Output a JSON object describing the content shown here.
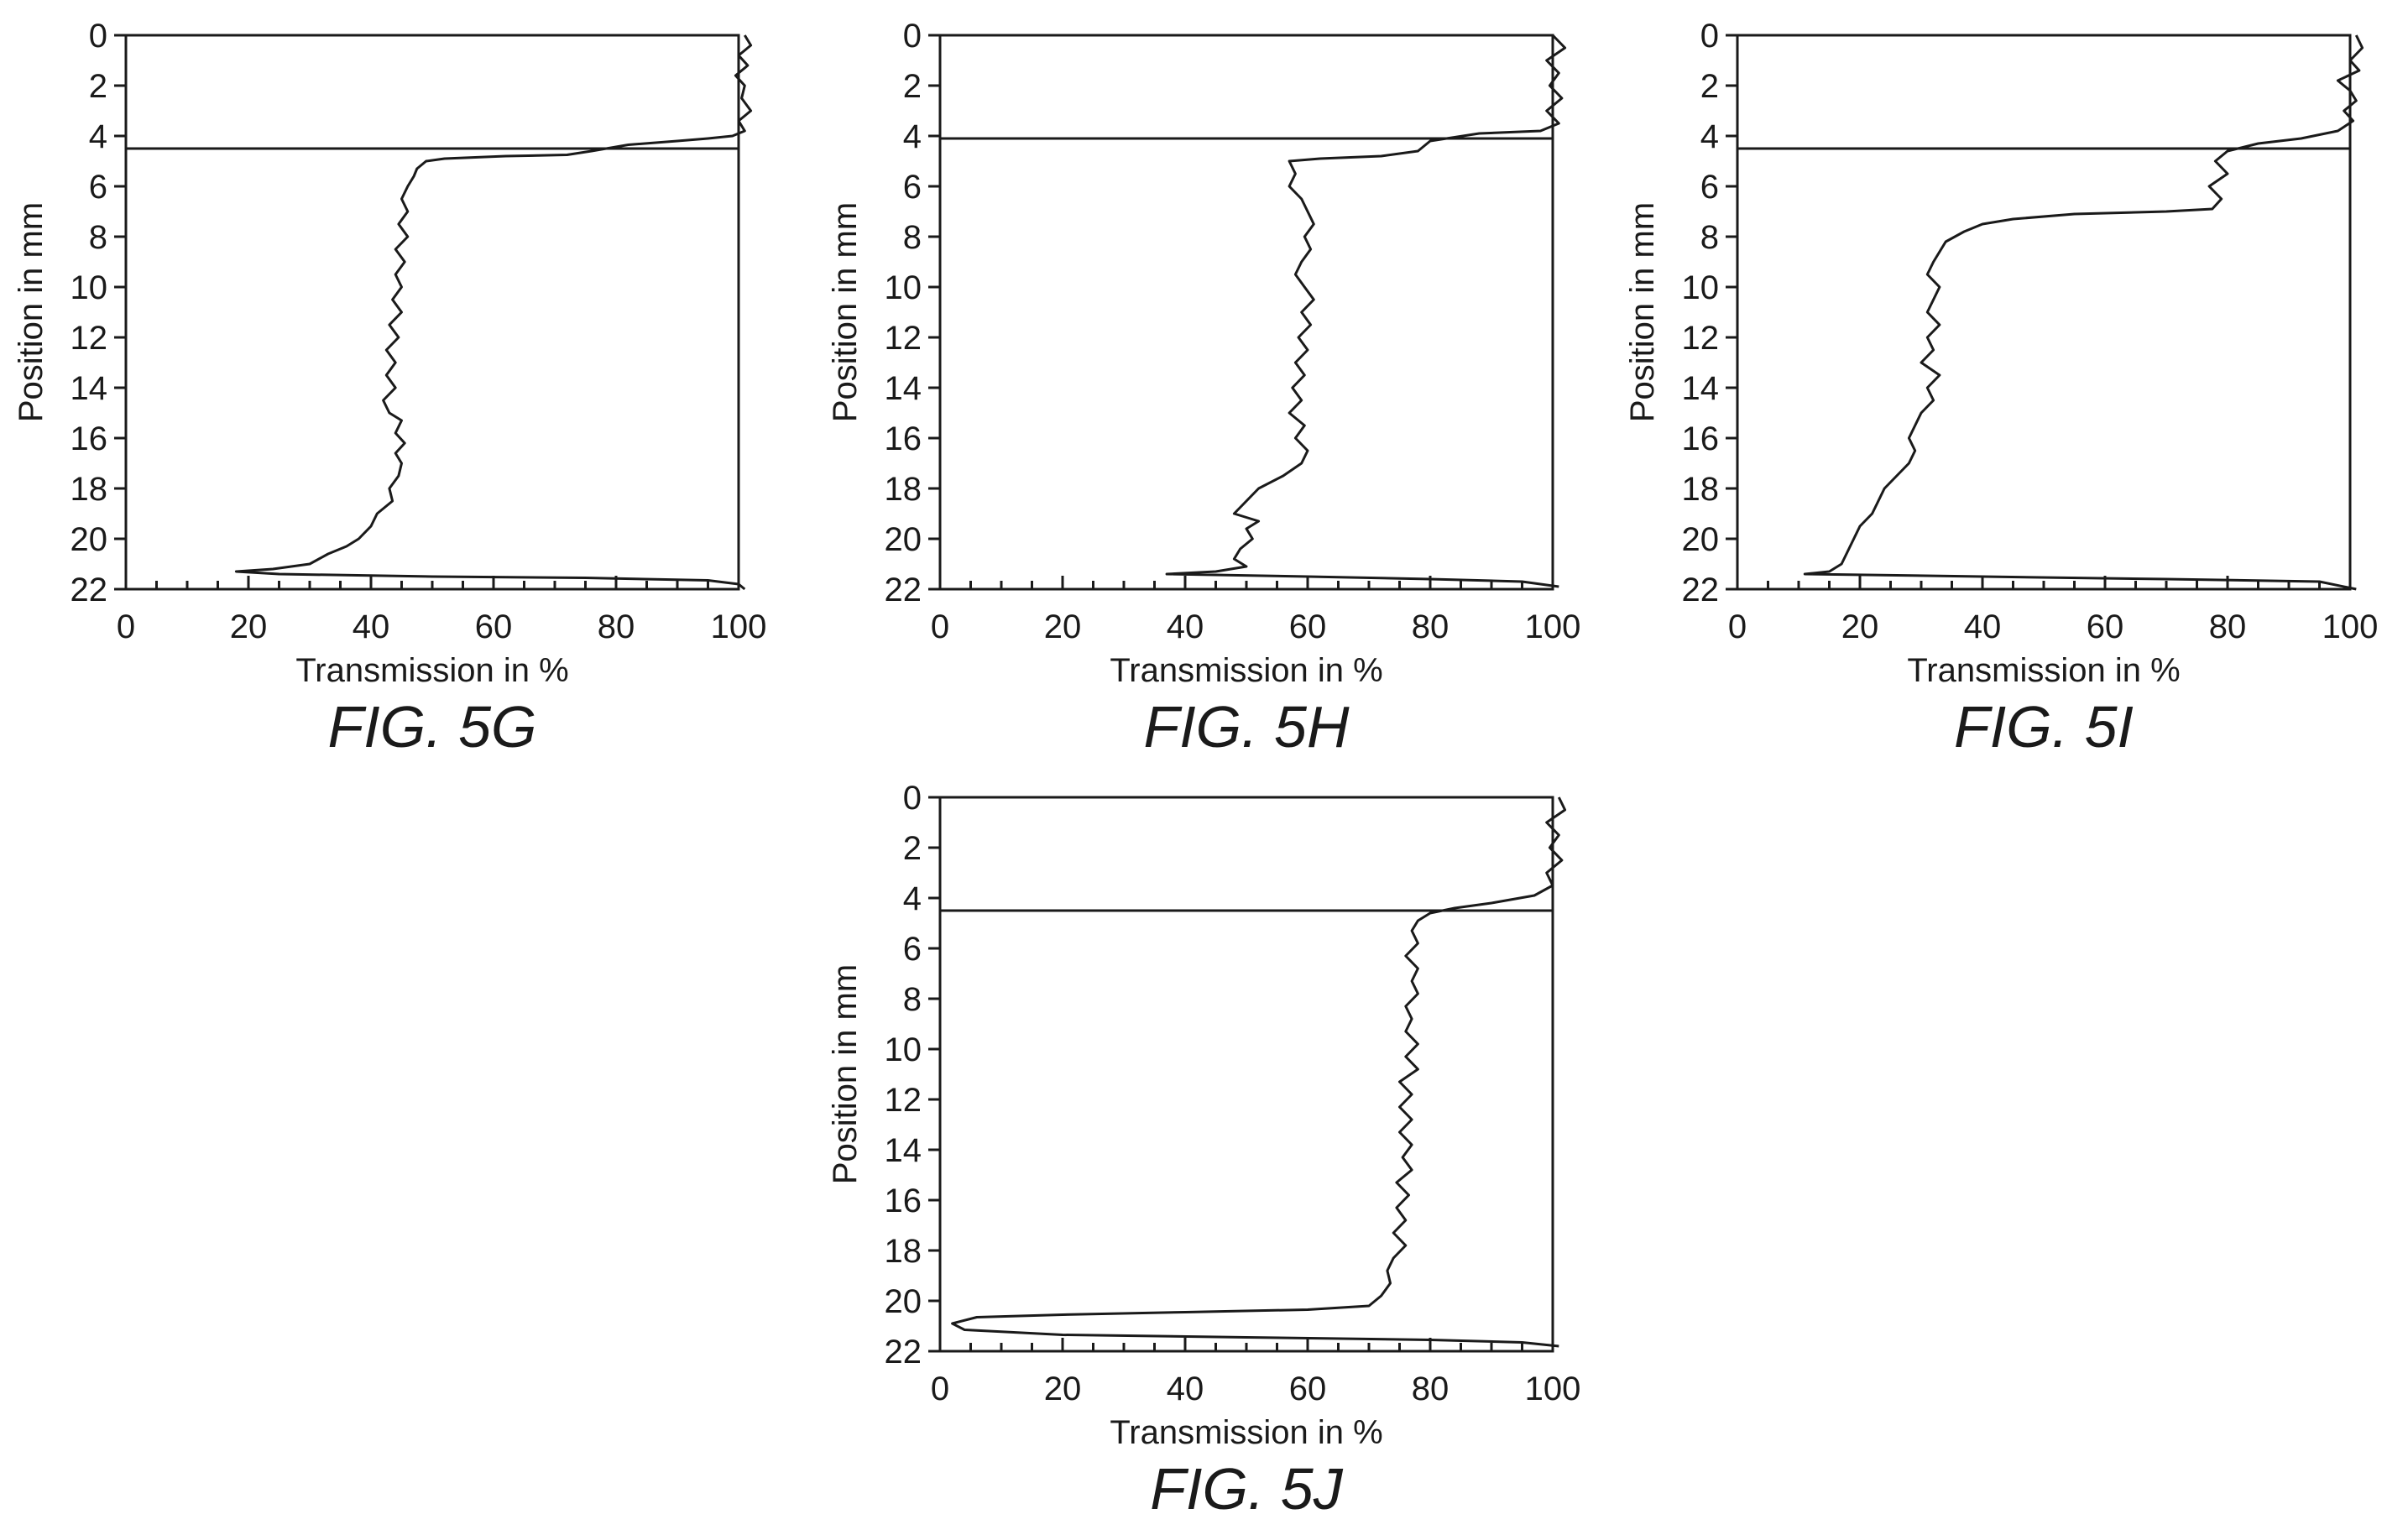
{
  "chart_data": [
    {
      "type": "line",
      "figure_label": "FIG. 5G",
      "xlabel": "Transmission in %",
      "ylabel": "Position in mm",
      "xlim": [
        0,
        100
      ],
      "ylim": [
        0,
        22
      ],
      "y_inverted": true,
      "x_ticks": [
        "0",
        "20",
        "40",
        "60",
        "80",
        "100"
      ],
      "y_ticks": [
        "0",
        "2",
        "4",
        "6",
        "8",
        "10",
        "12",
        "14",
        "16",
        "18",
        "20",
        "22"
      ],
      "grid": false,
      "reference_line_y": 4.5,
      "series": [
        {
          "points": [
            [
              101,
              0
            ],
            [
              102,
              0.4
            ],
            [
              100,
              0.8
            ],
            [
              101.5,
              1.2
            ],
            [
              99.5,
              1.6
            ],
            [
              101,
              2.0
            ],
            [
              100.5,
              2.5
            ],
            [
              102,
              3.0
            ],
            [
              100,
              3.4
            ],
            [
              101,
              3.8
            ],
            [
              99,
              4.0
            ],
            [
              95,
              4.1
            ],
            [
              90,
              4.2
            ],
            [
              82,
              4.35
            ],
            [
              76,
              4.6
            ],
            [
              72,
              4.75
            ],
            [
              62,
              4.8
            ],
            [
              52,
              4.9
            ],
            [
              49,
              5.0
            ],
            [
              47.5,
              5.3
            ],
            [
              47,
              5.6
            ],
            [
              46,
              6.0
            ],
            [
              45,
              6.5
            ],
            [
              46,
              7.0
            ],
            [
              44.5,
              7.5
            ],
            [
              46,
              8.0
            ],
            [
              44,
              8.5
            ],
            [
              45.5,
              9.0
            ],
            [
              44,
              9.5
            ],
            [
              45,
              10.0
            ],
            [
              43.5,
              10.5
            ],
            [
              45,
              11.0
            ],
            [
              43,
              11.5
            ],
            [
              44.5,
              12.0
            ],
            [
              42.5,
              12.5
            ],
            [
              44,
              13.0
            ],
            [
              42.5,
              13.5
            ],
            [
              44,
              14.0
            ],
            [
              42,
              14.5
            ],
            [
              43,
              15.0
            ],
            [
              45,
              15.3
            ],
            [
              44,
              15.8
            ],
            [
              45.5,
              16.2
            ],
            [
              44,
              16.6
            ],
            [
              45,
              17.0
            ],
            [
              44.5,
              17.5
            ],
            [
              43,
              18.0
            ],
            [
              43.5,
              18.5
            ],
            [
              41,
              19.0
            ],
            [
              40,
              19.5
            ],
            [
              38,
              20.0
            ],
            [
              36,
              20.3
            ],
            [
              33,
              20.6
            ],
            [
              30,
              21.0
            ],
            [
              24,
              21.2
            ],
            [
              18,
              21.3
            ],
            [
              25,
              21.4
            ],
            [
              50,
              21.5
            ],
            [
              75,
              21.55
            ],
            [
              95,
              21.65
            ],
            [
              100,
              21.8
            ],
            [
              101,
              22
            ]
          ]
        }
      ]
    },
    {
      "type": "line",
      "figure_label": "FIG. 5H",
      "xlabel": "Transmission in %",
      "ylabel": "Position in mm",
      "xlim": [
        0,
        100
      ],
      "ylim": [
        0,
        22
      ],
      "y_inverted": true,
      "x_ticks": [
        "0",
        "20",
        "40",
        "60",
        "80",
        "100"
      ],
      "y_ticks": [
        "0",
        "2",
        "4",
        "6",
        "8",
        "10",
        "12",
        "14",
        "16",
        "18",
        "20",
        "22"
      ],
      "grid": false,
      "reference_line_y": 4.1,
      "series": [
        {
          "points": [
            [
              100,
              0
            ],
            [
              102,
              0.5
            ],
            [
              99,
              1.0
            ],
            [
              101,
              1.5
            ],
            [
              99.5,
              2.0
            ],
            [
              101.5,
              2.5
            ],
            [
              99,
              3.0
            ],
            [
              101,
              3.5
            ],
            [
              98,
              3.8
            ],
            [
              88,
              3.9
            ],
            [
              80,
              4.2
            ],
            [
              78,
              4.6
            ],
            [
              72,
              4.8
            ],
            [
              62,
              4.9
            ],
            [
              57,
              5.0
            ],
            [
              58,
              5.5
            ],
            [
              57,
              6.0
            ],
            [
              59,
              6.5
            ],
            [
              60,
              7.0
            ],
            [
              61,
              7.5
            ],
            [
              59.5,
              8.0
            ],
            [
              60.5,
              8.5
            ],
            [
              59,
              9.0
            ],
            [
              58,
              9.5
            ],
            [
              59.5,
              10.0
            ],
            [
              61,
              10.5
            ],
            [
              59,
              11.0
            ],
            [
              60.5,
              11.5
            ],
            [
              58.5,
              12.0
            ],
            [
              60,
              12.5
            ],
            [
              58,
              13.0
            ],
            [
              59.5,
              13.5
            ],
            [
              57.5,
              14.0
            ],
            [
              59,
              14.5
            ],
            [
              57,
              15.0
            ],
            [
              59.5,
              15.5
            ],
            [
              58,
              16.0
            ],
            [
              60,
              16.5
            ],
            [
              59,
              17.0
            ],
            [
              56,
              17.5
            ],
            [
              52,
              18.0
            ],
            [
              50,
              18.5
            ],
            [
              48,
              19.0
            ],
            [
              52,
              19.3
            ],
            [
              50,
              19.6
            ],
            [
              51,
              20.0
            ],
            [
              49,
              20.4
            ],
            [
              48,
              20.8
            ],
            [
              50,
              21.1
            ],
            [
              45,
              21.3
            ],
            [
              37,
              21.4
            ],
            [
              60,
              21.5
            ],
            [
              80,
              21.6
            ],
            [
              95,
              21.7
            ],
            [
              101,
              21.9
            ]
          ]
        }
      ]
    },
    {
      "type": "line",
      "figure_label": "FIG. 5I",
      "xlabel": "Transmission in %",
      "ylabel": "Position in mm",
      "xlim": [
        0,
        100
      ],
      "ylim": [
        0,
        22
      ],
      "y_inverted": true,
      "x_ticks": [
        "0",
        "20",
        "40",
        "60",
        "80",
        "100"
      ],
      "y_ticks": [
        "0",
        "2",
        "4",
        "6",
        "8",
        "10",
        "12",
        "14",
        "16",
        "18",
        "20",
        "22"
      ],
      "grid": false,
      "reference_line_y": 4.5,
      "series": [
        {
          "points": [
            [
              101,
              0
            ],
            [
              102,
              0.5
            ],
            [
              100,
              1.0
            ],
            [
              101.5,
              1.4
            ],
            [
              98,
              1.8
            ],
            [
              100,
              2.2
            ],
            [
              101,
              2.6
            ],
            [
              99,
              3.0
            ],
            [
              100.5,
              3.4
            ],
            [
              98,
              3.8
            ],
            [
              92,
              4.1
            ],
            [
              85,
              4.3
            ],
            [
              80,
              4.6
            ],
            [
              78,
              5.0
            ],
            [
              80,
              5.5
            ],
            [
              77,
              6.0
            ],
            [
              79,
              6.5
            ],
            [
              77.5,
              6.9
            ],
            [
              70,
              7.0
            ],
            [
              55,
              7.1
            ],
            [
              45,
              7.3
            ],
            [
              40,
              7.5
            ],
            [
              37,
              7.8
            ],
            [
              34,
              8.2
            ],
            [
              33,
              8.6
            ],
            [
              32,
              9.0
            ],
            [
              31,
              9.5
            ],
            [
              33,
              10.0
            ],
            [
              32,
              10.5
            ],
            [
              31,
              11.0
            ],
            [
              33,
              11.5
            ],
            [
              31,
              12.0
            ],
            [
              32,
              12.5
            ],
            [
              30,
              13.0
            ],
            [
              33,
              13.5
            ],
            [
              31,
              14.0
            ],
            [
              32,
              14.5
            ],
            [
              30,
              15.0
            ],
            [
              29,
              15.5
            ],
            [
              28,
              16.0
            ],
            [
              29,
              16.5
            ],
            [
              28,
              17.0
            ],
            [
              26,
              17.5
            ],
            [
              24,
              18.0
            ],
            [
              23,
              18.5
            ],
            [
              22,
              19.0
            ],
            [
              20,
              19.5
            ],
            [
              19,
              20.0
            ],
            [
              18,
              20.5
            ],
            [
              17,
              21.0
            ],
            [
              15,
              21.3
            ],
            [
              11,
              21.4
            ],
            [
              40,
              21.5
            ],
            [
              70,
              21.6
            ],
            [
              95,
              21.7
            ],
            [
              101,
              22
            ]
          ]
        }
      ]
    },
    {
      "type": "line",
      "figure_label": "FIG. 5J",
      "xlabel": "Transmission in %",
      "ylabel": "Position in mm",
      "xlim": [
        0,
        100
      ],
      "ylim": [
        0,
        22
      ],
      "y_inverted": true,
      "x_ticks": [
        "0",
        "20",
        "40",
        "60",
        "80",
        "100"
      ],
      "y_ticks": [
        "0",
        "2",
        "4",
        "6",
        "8",
        "10",
        "12",
        "14",
        "16",
        "18",
        "20",
        "22"
      ],
      "grid": false,
      "reference_line_y": 4.5,
      "series": [
        {
          "points": [
            [
              101,
              0
            ],
            [
              102,
              0.5
            ],
            [
              99,
              1.0
            ],
            [
              101,
              1.5
            ],
            [
              99.5,
              2.0
            ],
            [
              101.5,
              2.5
            ],
            [
              99,
              3.0
            ],
            [
              100,
              3.5
            ],
            [
              97,
              3.9
            ],
            [
              90,
              4.2
            ],
            [
              84,
              4.4
            ],
            [
              80,
              4.6
            ],
            [
              78,
              4.9
            ],
            [
              77,
              5.3
            ],
            [
              78,
              5.8
            ],
            [
              76,
              6.3
            ],
            [
              78,
              6.8
            ],
            [
              77,
              7.3
            ],
            [
              78,
              7.8
            ],
            [
              76,
              8.3
            ],
            [
              77,
              8.8
            ],
            [
              76,
              9.3
            ],
            [
              78,
              9.8
            ],
            [
              76,
              10.3
            ],
            [
              78,
              10.8
            ],
            [
              75,
              11.3
            ],
            [
              77,
              11.8
            ],
            [
              75,
              12.3
            ],
            [
              77,
              12.8
            ],
            [
              75,
              13.3
            ],
            [
              77,
              13.8
            ],
            [
              75.5,
              14.3
            ],
            [
              77,
              14.8
            ],
            [
              74.5,
              15.3
            ],
            [
              76.5,
              15.8
            ],
            [
              74.5,
              16.3
            ],
            [
              76,
              16.8
            ],
            [
              74,
              17.3
            ],
            [
              76,
              17.8
            ],
            [
              74,
              18.3
            ],
            [
              73,
              18.8
            ],
            [
              73.5,
              19.3
            ],
            [
              72,
              19.8
            ],
            [
              70,
              20.2
            ],
            [
              60,
              20.35
            ],
            [
              40,
              20.45
            ],
            [
              20,
              20.55
            ],
            [
              6,
              20.65
            ],
            [
              2,
              20.9
            ],
            [
              4,
              21.15
            ],
            [
              20,
              21.35
            ],
            [
              50,
              21.45
            ],
            [
              80,
              21.55
            ],
            [
              95,
              21.65
            ],
            [
              101,
              21.8
            ]
          ]
        }
      ]
    }
  ]
}
